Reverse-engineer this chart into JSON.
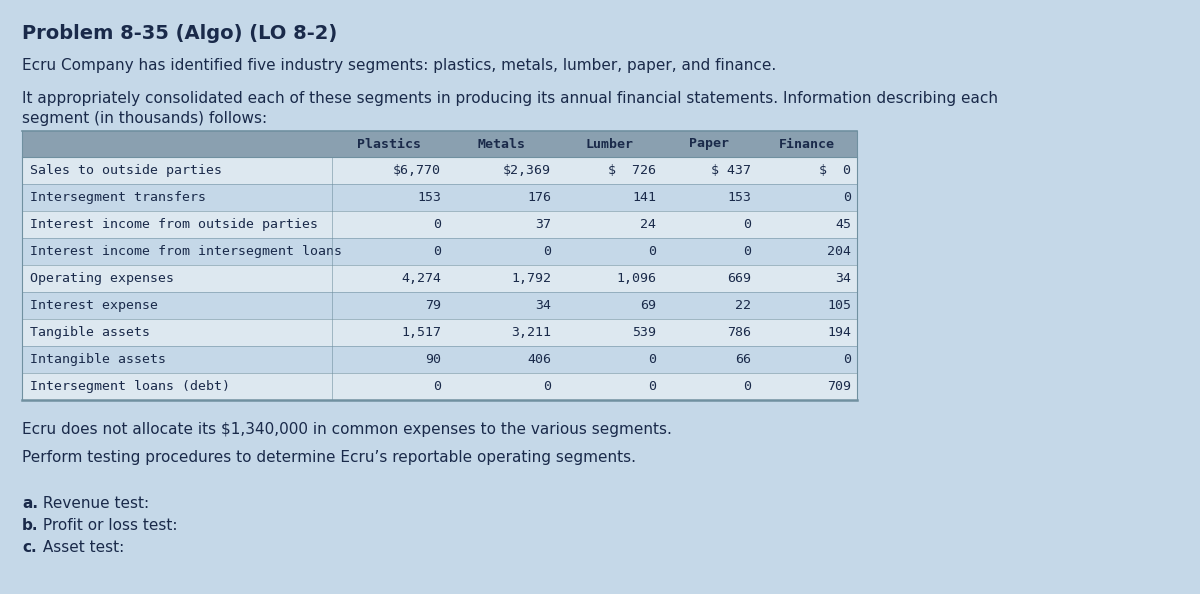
{
  "title": "Problem 8-35 (Algo) (LO 8-2)",
  "para1": "Ecru Company has identified five industry segments: plastics, metals, lumber, paper, and finance.",
  "para2_line1": "It appropriately consolidated each of these segments in producing its annual financial statements. Information describing each",
  "para2_line2": "segment (in thousands) follows:",
  "columns": [
    "Plastics",
    "Metals",
    "Lumber",
    "Paper",
    "Finance"
  ],
  "row_labels": [
    "Sales to outside parties",
    "Intersegment transfers",
    "Interest income from outside parties",
    "Interest income from intersegment loans",
    "Operating expenses",
    "Interest expense",
    "Tangible assets",
    "Intangible assets",
    "Intersegment loans (debt)"
  ],
  "data": [
    [
      "$6,770",
      "$2,369",
      "$  726",
      "$ 437",
      "$  0"
    ],
    [
      "153",
      "176",
      "141",
      "153",
      "0"
    ],
    [
      "0",
      "37",
      "24",
      "0",
      "45"
    ],
    [
      "0",
      "0",
      "0",
      "0",
      "204"
    ],
    [
      "4,274",
      "1,792",
      "1,096",
      "669",
      "34"
    ],
    [
      "79",
      "34",
      "69",
      "22",
      "105"
    ],
    [
      "1,517",
      "3,211",
      "539",
      "786",
      "194"
    ],
    [
      "90",
      "406",
      "0",
      "66",
      "0"
    ],
    [
      "0",
      "0",
      "0",
      "0",
      "709"
    ]
  ],
  "footer1": "Ecru does not allocate its $1,340,000 in common expenses to the various segments.",
  "footer2": "Perform testing procedures to determine Ecru’s reportable operating segments.",
  "test_labels": [
    "a. Revenue test:",
    "b. Profit or loss test:",
    "c. Asset test:"
  ],
  "bg_color": "#c5d8e8",
  "header_bg": "#8aa0b0",
  "row_odd_bg": "#dde8f0",
  "row_even_bg": "#c5d8e8",
  "table_border_color": "#7090a0",
  "text_color": "#1a2a4a",
  "title_fontsize": 14,
  "body_fontsize": 11,
  "table_label_fontsize": 9.5,
  "table_data_fontsize": 9.5,
  "header_fontsize": 9.5
}
